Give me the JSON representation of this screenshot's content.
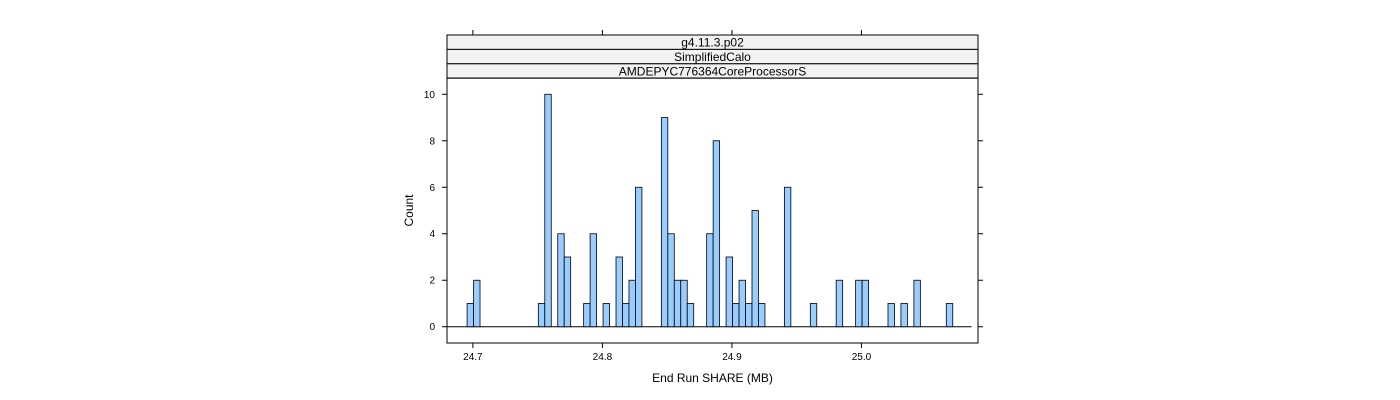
{
  "chart_data": {
    "type": "bar",
    "title": "",
    "strips": [
      "g4.11.3.p02",
      "SimplifiedCalo",
      "AMDEPYC776364CoreProcessorS"
    ],
    "xlabel": "End Run SHARE (MB)",
    "ylabel": "Count",
    "xlim": [
      24.68,
      25.09
    ],
    "ylim": [
      -0.7,
      10.7
    ],
    "baseline": [
      24.68,
      25.085
    ],
    "bin_width": 0.005,
    "x_ticks": [
      24.7,
      24.8,
      24.9,
      25.0
    ],
    "x_tick_labels": [
      "24.7",
      "24.8",
      "24.9",
      "25.0"
    ],
    "y_ticks": [
      0,
      2,
      4,
      6,
      8,
      10
    ],
    "y_tick_labels": [
      "0",
      "2",
      "4",
      "6",
      "8",
      "10"
    ],
    "bin_starts": [
      24.6955,
      24.7005,
      24.7505,
      24.7555,
      24.7655,
      24.7705,
      24.7855,
      24.7905,
      24.8005,
      24.8105,
      24.8155,
      24.8205,
      24.8255,
      24.8455,
      24.8505,
      24.8555,
      24.8605,
      24.8655,
      24.8805,
      24.8855,
      24.8955,
      24.9005,
      24.9055,
      24.9105,
      24.9155,
      24.9205,
      24.9405,
      24.9605,
      24.9805,
      24.9955,
      25.0005,
      25.0205,
      25.0305,
      25.0405,
      25.0655
    ],
    "values": [
      1,
      2,
      1,
      10,
      4,
      3,
      1,
      4,
      1,
      3,
      1,
      2,
      6,
      9,
      4,
      2,
      2,
      1,
      4,
      8,
      3,
      1,
      2,
      1,
      5,
      1,
      6,
      1,
      2,
      2,
      2,
      1,
      1,
      2,
      1
    ],
    "colors": {
      "bar_fill": "#99ccff",
      "bar_stroke": "#000000",
      "strip_fill": "#f2f2f2",
      "frame": "#000000"
    }
  }
}
